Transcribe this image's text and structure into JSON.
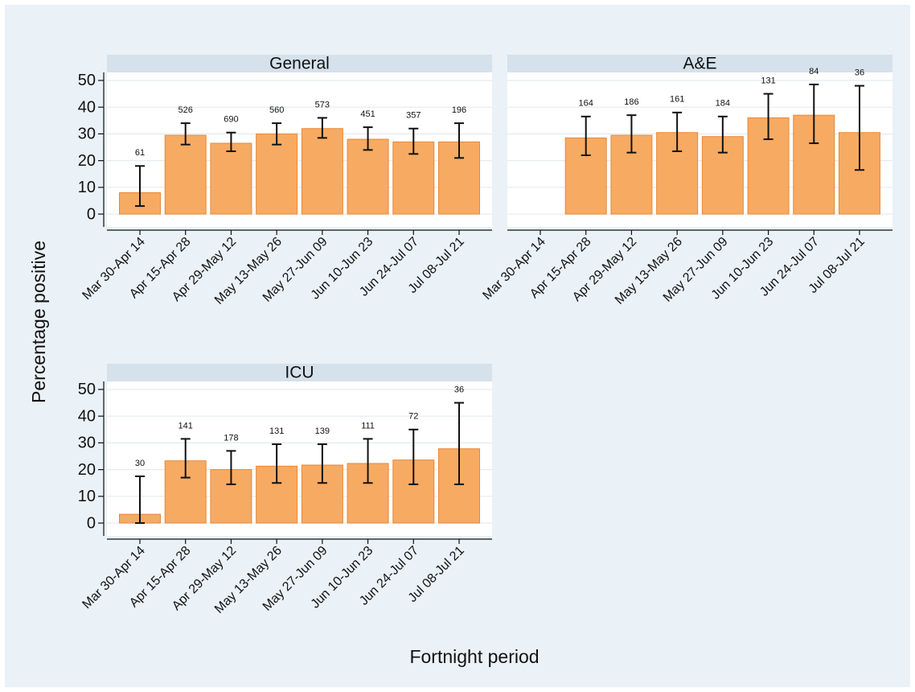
{
  "ylabel": "Percentage positive",
  "xlabel": "Fortnight period",
  "chart_data": [
    {
      "type": "bar",
      "title": "General",
      "categories": [
        "Mar 30-Apr 14",
        "Apr 15-Apr 28",
        "Apr 29-May 12",
        "May 13-May 26",
        "May 27-Jun 09",
        "Jun 10-Jun 23",
        "Jun 24-Jul 07",
        "Jul 08-Jul 21"
      ],
      "values": [
        8,
        29.5,
        26.5,
        30,
        32,
        28,
        27,
        27
      ],
      "ci_low": [
        3,
        26,
        23.5,
        26,
        28.5,
        24,
        22.5,
        21
      ],
      "ci_high": [
        18,
        34,
        30.5,
        34,
        36,
        32.5,
        32,
        34
      ],
      "n": [
        61,
        526,
        690,
        560,
        573,
        451,
        357,
        196
      ],
      "color": "#f7aa62",
      "ylim": [
        -4.8,
        53
      ],
      "yticks": [
        0,
        10,
        20,
        30,
        40,
        50
      ],
      "grid": true
    },
    {
      "type": "bar",
      "title": "A&E",
      "categories": [
        "Mar 30-Apr 14",
        "Apr 15-Apr 28",
        "Apr 29-May 12",
        "May 13-May 26",
        "May 27-Jun 09",
        "Jun 10-Jun 23",
        "Jun 24-Jul 07",
        "Jul 08-Jul 21"
      ],
      "values": [
        null,
        28.5,
        29.5,
        30.5,
        29,
        36,
        37,
        30.5
      ],
      "ci_low": [
        null,
        22,
        23,
        23.5,
        23,
        28,
        26.5,
        16.5
      ],
      "ci_high": [
        null,
        36.5,
        37,
        38,
        36.5,
        45,
        48.5,
        48
      ],
      "n": [
        null,
        164,
        186,
        161,
        184,
        131,
        84,
        36
      ],
      "color": "#f7aa62",
      "ylim": [
        -4.8,
        53
      ],
      "yticks": [
        0,
        10,
        20,
        30,
        40,
        50
      ],
      "grid": true
    },
    {
      "type": "bar",
      "title": "ICU",
      "categories": [
        "Mar 30-Apr 14",
        "Apr 15-Apr 28",
        "Apr 29-May 12",
        "May 13-May 26",
        "May 27-Jun 09",
        "Jun 10-Jun 23",
        "Jun 24-Jul 07",
        "Jul 08-Jul 21"
      ],
      "values": [
        3.3,
        23.3,
        20,
        21.3,
        21.7,
        22.3,
        23.6,
        27.8
      ],
      "ci_low": [
        0,
        17,
        14.5,
        15,
        15,
        15,
        14.5,
        14.5
      ],
      "ci_high": [
        17.5,
        31.5,
        27,
        29.5,
        29.5,
        31.5,
        35,
        45
      ],
      "n": [
        30,
        141,
        178,
        131,
        139,
        111,
        72,
        36
      ],
      "color": "#f7aa62",
      "ylim": [
        -4.8,
        53
      ],
      "yticks": [
        0,
        10,
        20,
        30,
        40,
        50
      ],
      "grid": true
    }
  ]
}
